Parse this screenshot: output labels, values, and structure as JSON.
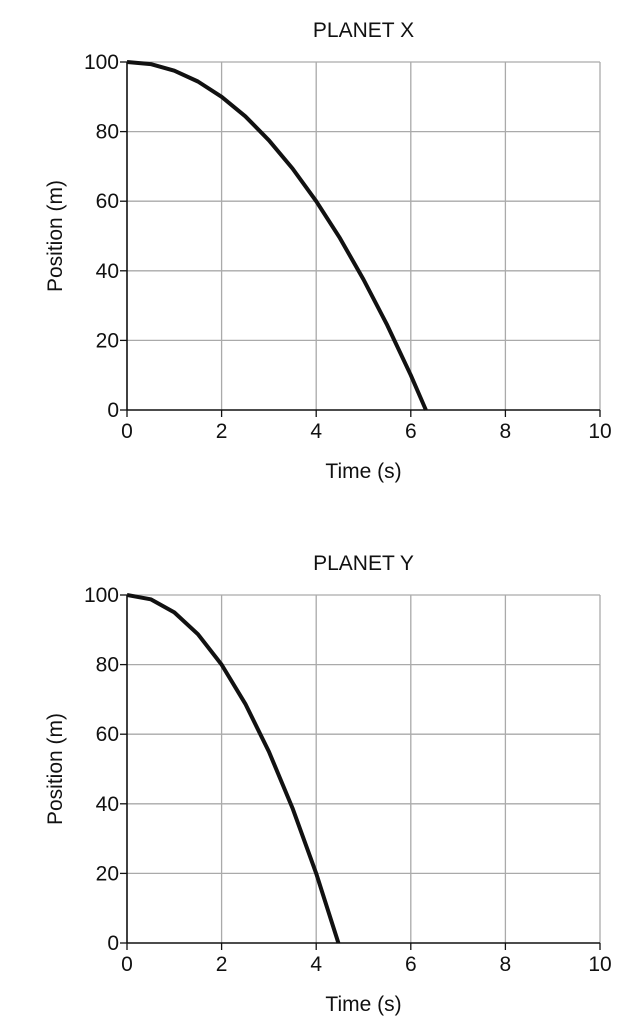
{
  "chart_data": [
    {
      "type": "line",
      "title": "PLANET X",
      "xlabel": "Time (s)",
      "ylabel": "Position (m)",
      "xlim": [
        0,
        10
      ],
      "ylim": [
        0,
        100
      ],
      "xticks": [
        "0",
        "2",
        "4",
        "6",
        "8",
        "10"
      ],
      "yticks": [
        "0",
        "20",
        "40",
        "60",
        "80",
        "100"
      ],
      "grid": true,
      "line_color": "#111111",
      "grid_color": "#aaaaaa",
      "x": [
        0,
        0.5,
        1,
        1.5,
        2,
        2.5,
        3,
        3.5,
        4,
        4.5,
        5,
        5.5,
        6,
        6.32
      ],
      "y": [
        100,
        99.4,
        97.5,
        94.4,
        90,
        84.4,
        77.5,
        69.4,
        60,
        49.4,
        37.5,
        24.4,
        10,
        0
      ]
    },
    {
      "type": "line",
      "title": "PLANET Y",
      "xlabel": "Time (s)",
      "ylabel": "Position (m)",
      "xlim": [
        0,
        10
      ],
      "ylim": [
        0,
        100
      ],
      "xticks": [
        "0",
        "2",
        "4",
        "6",
        "8",
        "10"
      ],
      "yticks": [
        "0",
        "20",
        "40",
        "60",
        "80",
        "100"
      ],
      "grid": true,
      "line_color": "#111111",
      "grid_color": "#aaaaaa",
      "x": [
        0,
        0.5,
        1,
        1.5,
        2,
        2.5,
        3,
        3.5,
        4,
        4.47
      ],
      "y": [
        100,
        98.75,
        95,
        88.75,
        80,
        68.75,
        55,
        38.75,
        20,
        0
      ]
    }
  ]
}
